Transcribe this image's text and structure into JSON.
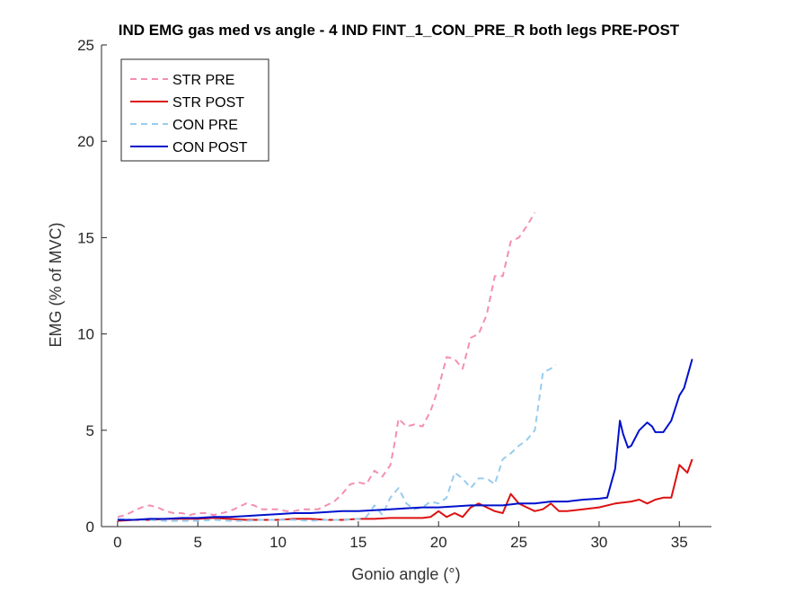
{
  "chart_data": {
    "type": "line",
    "title": "IND EMG gas med vs angle - 4 IND FINT_1_CON_PRE_R both legs PRE-POST",
    "xlabel": "Gonio angle (°)",
    "ylabel": "EMG (% of MVC)",
    "xlim": [
      -1,
      37
    ],
    "ylim": [
      0,
      25
    ],
    "xticks": [
      0,
      5,
      10,
      15,
      20,
      25,
      30,
      35
    ],
    "yticks": [
      0,
      5,
      10,
      15,
      20,
      25
    ],
    "grid": false,
    "legend_position": "top-left",
    "series": [
      {
        "name": "STR PRE",
        "color": "#f48fb1",
        "dash": "dashed",
        "x": [
          0,
          0.5,
          1,
          1.5,
          2,
          2.5,
          3,
          3.5,
          4,
          4.5,
          5,
          5.5,
          6,
          6.5,
          7,
          7.5,
          8,
          8.5,
          9,
          9.5,
          10,
          10.5,
          11,
          11.5,
          12,
          12.5,
          13,
          13.5,
          14,
          14.5,
          15,
          15.5,
          16,
          16.5,
          17,
          17.3,
          17.5,
          18,
          18.5,
          19,
          19.5,
          20,
          20.5,
          21,
          21.5,
          22,
          22.5,
          23,
          23.5,
          24,
          24.5,
          25,
          25.5,
          26
        ],
        "y": [
          0.5,
          0.6,
          0.8,
          1.0,
          1.1,
          1.0,
          0.8,
          0.7,
          0.7,
          0.6,
          0.7,
          0.7,
          0.6,
          0.7,
          0.8,
          1.0,
          1.2,
          1.1,
          0.9,
          0.9,
          0.9,
          0.8,
          0.8,
          0.9,
          0.9,
          0.9,
          1.1,
          1.3,
          1.7,
          2.2,
          2.3,
          2.2,
          2.9,
          2.6,
          3.2,
          4.5,
          5.6,
          5.2,
          5.3,
          5.2,
          6.0,
          7.2,
          8.8,
          8.7,
          8.2,
          9.8,
          10.0,
          11.0,
          13.0,
          13.0,
          14.8,
          15.0,
          15.6,
          16.3
        ]
      },
      {
        "name": "STR POST",
        "color": "#dd1111",
        "dash": "solid",
        "x": [
          0,
          1,
          2,
          3,
          4,
          5,
          6,
          7,
          8,
          9,
          10,
          11,
          12,
          13,
          14,
          15,
          16,
          17,
          18,
          19,
          19.5,
          20,
          20.5,
          21,
          21.5,
          22,
          22.5,
          23,
          23.5,
          24,
          24.5,
          25,
          25.5,
          26,
          26.5,
          27,
          27.5,
          28,
          29,
          30,
          31,
          32,
          32.5,
          33,
          33.5,
          34,
          34.5,
          35,
          35.5,
          35.8
        ],
        "y": [
          0.3,
          0.35,
          0.35,
          0.4,
          0.4,
          0.4,
          0.45,
          0.4,
          0.35,
          0.35,
          0.35,
          0.4,
          0.4,
          0.35,
          0.35,
          0.4,
          0.4,
          0.45,
          0.45,
          0.45,
          0.5,
          0.8,
          0.5,
          0.7,
          0.5,
          1.0,
          1.2,
          1.0,
          0.8,
          0.7,
          1.7,
          1.2,
          1.0,
          0.8,
          0.9,
          1.2,
          0.8,
          0.8,
          0.9,
          1.0,
          1.2,
          1.3,
          1.4,
          1.2,
          1.4,
          1.5,
          1.5,
          3.2,
          2.8,
          3.5
        ]
      },
      {
        "name": "CON PRE",
        "color": "#99ccee",
        "dash": "dashed",
        "x": [
          0,
          1,
          2,
          3,
          4,
          5,
          6,
          7,
          8,
          9,
          10,
          11,
          12,
          13,
          14,
          15,
          15.5,
          16,
          16.5,
          17,
          17.5,
          18,
          18.5,
          19,
          19.5,
          20,
          20.5,
          21,
          21.5,
          22,
          22.5,
          23,
          23.5,
          24,
          24.5,
          25,
          25.5,
          26,
          26.5,
          27,
          27.3
        ],
        "y": [
          0.4,
          0.35,
          0.35,
          0.3,
          0.3,
          0.3,
          0.35,
          0.3,
          0.3,
          0.35,
          0.35,
          0.35,
          0.3,
          0.35,
          0.35,
          0.4,
          0.5,
          1.1,
          0.6,
          1.5,
          2.0,
          1.2,
          0.9,
          1.0,
          1.3,
          1.2,
          1.5,
          2.8,
          2.5,
          2.0,
          2.5,
          2.5,
          2.2,
          3.5,
          3.8,
          4.2,
          4.5,
          5.0,
          8.0,
          8.2,
          8.4
        ]
      },
      {
        "name": "CON POST",
        "color": "#0011cc",
        "dash": "solid",
        "x": [
          0,
          1,
          2,
          3,
          4,
          5,
          6,
          7,
          8,
          9,
          10,
          11,
          12,
          13,
          14,
          15,
          16,
          17,
          18,
          19,
          20,
          21,
          22,
          23,
          24,
          25,
          26,
          27,
          28,
          29,
          30,
          30.5,
          31,
          31.3,
          31.5,
          31.8,
          32,
          32.5,
          33,
          33.3,
          33.5,
          34,
          34.5,
          35,
          35.3,
          35.5,
          35.8
        ],
        "y": [
          0.35,
          0.35,
          0.4,
          0.4,
          0.45,
          0.45,
          0.5,
          0.5,
          0.55,
          0.6,
          0.65,
          0.7,
          0.7,
          0.75,
          0.8,
          0.8,
          0.85,
          0.9,
          0.95,
          1.0,
          1.0,
          1.05,
          1.1,
          1.1,
          1.1,
          1.2,
          1.2,
          1.3,
          1.3,
          1.4,
          1.45,
          1.5,
          3.0,
          5.5,
          4.8,
          4.1,
          4.2,
          5.0,
          5.4,
          5.2,
          4.9,
          4.9,
          5.5,
          6.8,
          7.2,
          7.8,
          8.7
        ]
      }
    ]
  }
}
